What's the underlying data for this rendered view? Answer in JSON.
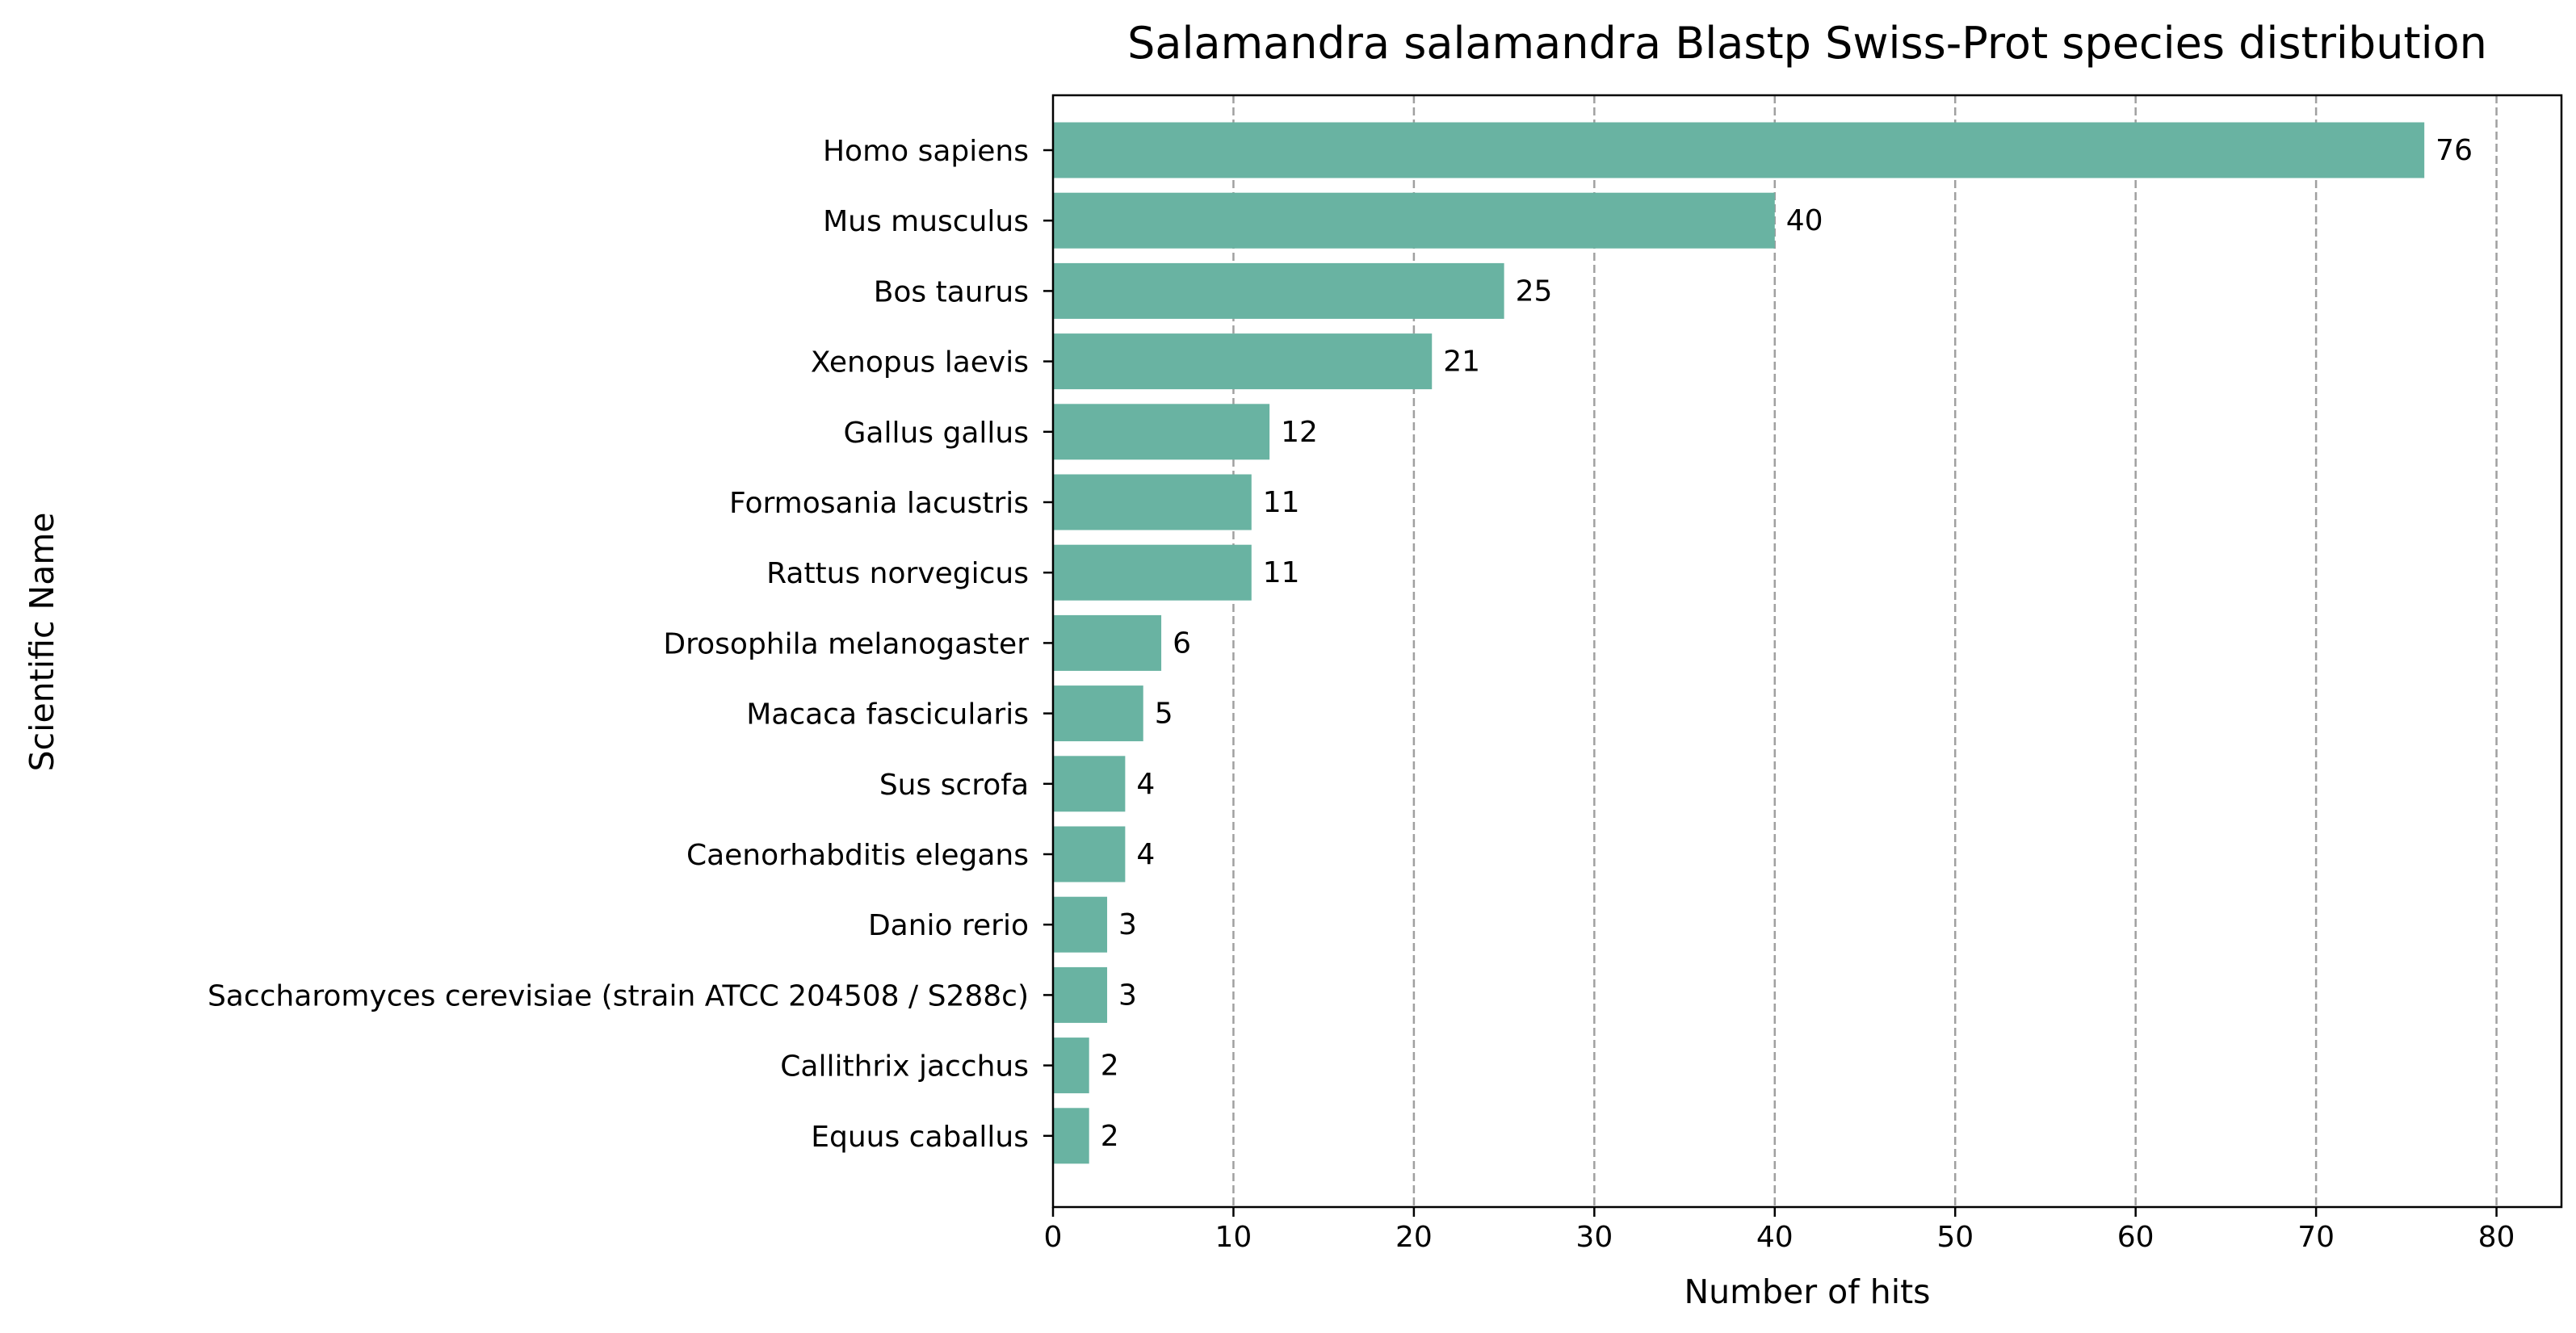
{
  "chart_data": {
    "type": "bar",
    "orientation": "horizontal",
    "title": "Salamandra salamandra Blastp Swiss-Prot species distribution",
    "xlabel": "Number of hits",
    "ylabel": "Scientific Name",
    "xlim": [
      0,
      83.6
    ],
    "xticks": [
      0,
      10,
      20,
      30,
      40,
      50,
      60,
      70,
      80
    ],
    "grid": "x, dashed",
    "bar_color": "#69b3a2",
    "categories": [
      "Homo sapiens",
      "Mus musculus",
      "Bos taurus",
      "Xenopus laevis",
      "Gallus gallus",
      "Formosania lacustris",
      "Rattus norvegicus",
      "Drosophila melanogaster",
      "Macaca fascicularis",
      "Sus scrofa",
      "Caenorhabditis elegans",
      "Danio rerio",
      "Saccharomyces cerevisiae (strain ATCC 204508 / S288c)",
      "Callithrix jacchus",
      "Equus caballus"
    ],
    "values": [
      76,
      40,
      25,
      21,
      12,
      11,
      11,
      6,
      5,
      4,
      4,
      3,
      3,
      2,
      2
    ]
  }
}
